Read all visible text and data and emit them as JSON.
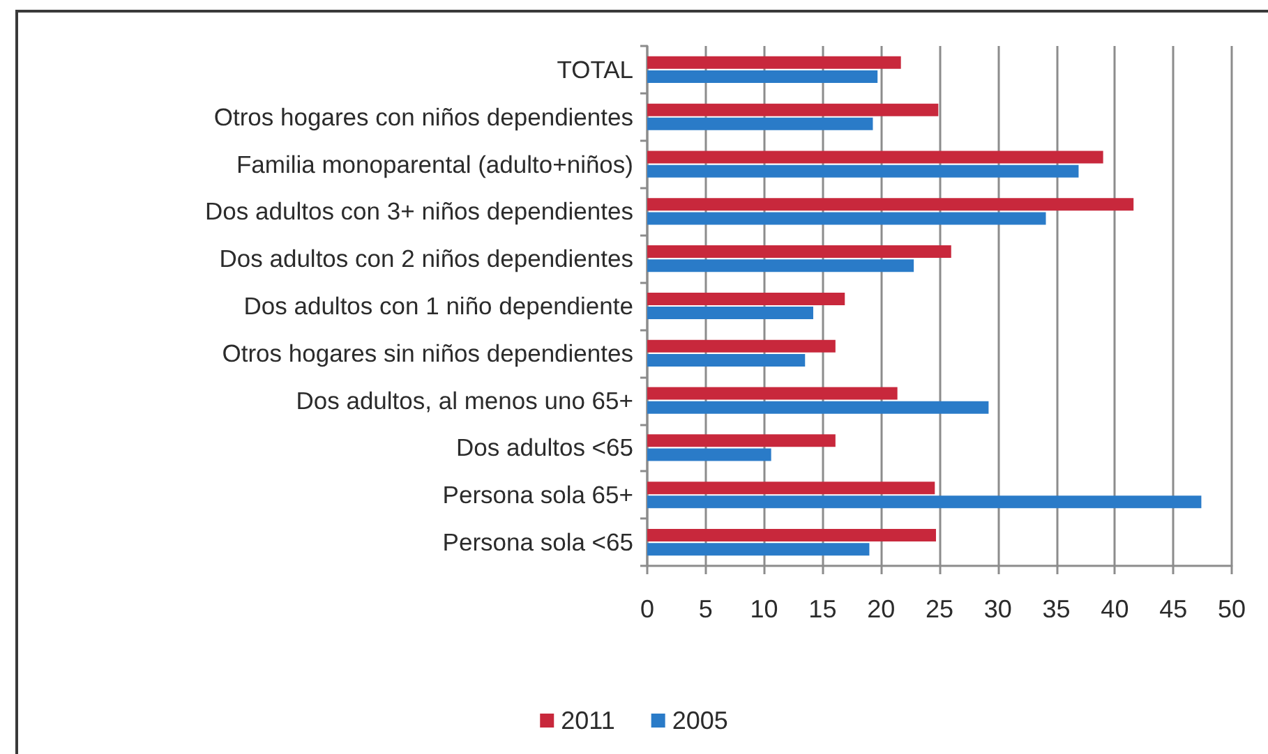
{
  "chart_data": {
    "type": "bar",
    "orientation": "horizontal",
    "categories": [
      "TOTAL",
      "Otros hogares con niños dependientes",
      "Familia monoparental (adulto+niños)",
      "Dos adultos con 3+ niños dependientes",
      "Dos adultos con 2 niños dependientes",
      "Dos adultos con 1 niño dependiente",
      "Otros hogares sin niños dependientes",
      "Dos adultos, al menos uno 65+",
      "Dos adultos <65",
      "Persona sola 65+",
      "Persona sola <65"
    ],
    "series": [
      {
        "name": "2011",
        "color": "#c8283c",
        "values": [
          21.7,
          24.9,
          39.0,
          41.6,
          26.0,
          16.9,
          16.1,
          21.4,
          16.1,
          24.6,
          24.7
        ]
      },
      {
        "name": "2005",
        "color": "#2a7bc8",
        "values": [
          19.7,
          19.3,
          36.9,
          34.1,
          22.8,
          14.2,
          13.5,
          29.2,
          10.6,
          47.4,
          19.0
        ]
      }
    ],
    "xlim": [
      0,
      50
    ],
    "xticks": [
      0,
      5,
      10,
      15,
      20,
      25,
      30,
      35,
      40,
      45,
      50
    ],
    "grid": "x",
    "legend": "bottom"
  }
}
